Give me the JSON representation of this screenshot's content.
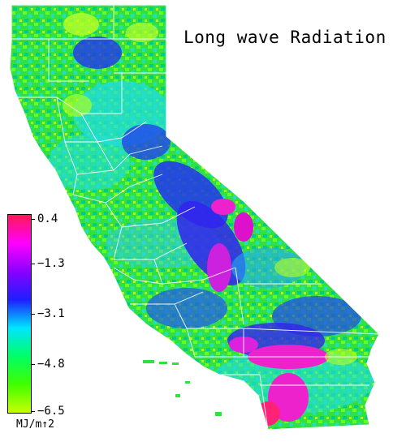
{
  "title": "Long wave Radiation",
  "legend": {
    "unit": "MJ/m↑2",
    "ticks": [
      "0.4",
      "−1.3",
      "−3.1",
      "−4.8",
      "−6.5"
    ],
    "colors": [
      "#ff1a55",
      "#ff00ff",
      "#8a00ff",
      "#1e1eff",
      "#00e5ff",
      "#00ff66",
      "#40ff00",
      "#c8ff00"
    ]
  },
  "map": {
    "region": "California",
    "colors": {
      "low": "#44ee22",
      "mid": "#22dddd",
      "high_blue": "#2233ee",
      "peak": "#ee22cc",
      "boundary": "#ffffff"
    }
  }
}
